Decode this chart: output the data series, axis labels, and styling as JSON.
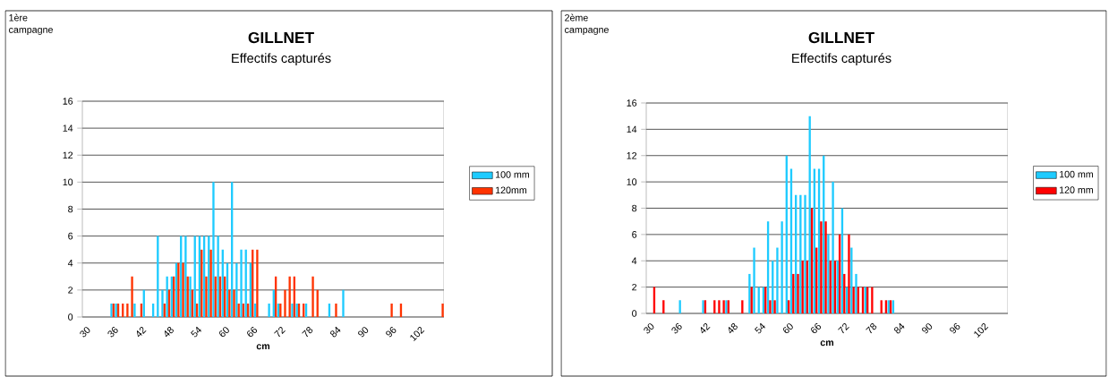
{
  "chart_data": [
    {
      "type": "bar",
      "title": "GILLNET",
      "subtitle": "Effectifs capturés",
      "xlabel": "cm",
      "annotations": [
        "1ère campagne"
      ],
      "categories": [
        "30",
        null,
        null,
        null,
        null,
        null,
        "36",
        null,
        null,
        null,
        null,
        null,
        "42",
        null,
        null,
        null,
        null,
        null,
        "48",
        null,
        null,
        null,
        null,
        null,
        "54",
        null,
        null,
        null,
        null,
        null,
        "60",
        null,
        null,
        null,
        null,
        null,
        "66",
        null,
        null,
        null,
        null,
        null,
        "72",
        null,
        null,
        null,
        null,
        null,
        "78",
        null,
        null,
        null,
        null,
        null,
        "84",
        null,
        null,
        null,
        null,
        null,
        "90",
        null,
        null,
        null,
        null,
        null,
        "96",
        null,
        null,
        null,
        null,
        null,
        "102",
        null,
        null,
        null,
        null,
        null
      ],
      "series": [
        {
          "name": "100 mm",
          "color": "#1ecbff",
          "values": [
            0,
            0,
            0,
            0,
            0,
            0,
            1,
            1,
            0,
            0,
            0,
            1,
            0,
            2,
            0,
            1,
            6,
            2,
            3,
            3,
            4,
            6,
            6,
            3,
            6,
            6,
            6,
            6,
            10,
            6,
            5,
            4,
            10,
            4,
            5,
            5,
            4,
            1,
            0,
            0,
            1,
            2,
            1,
            0,
            0,
            1,
            1,
            0,
            1,
            0,
            0,
            0,
            0,
            1,
            0,
            0,
            2,
            0,
            0,
            0,
            0,
            0,
            0,
            0,
            0,
            0,
            0,
            0,
            0,
            0,
            0,
            0,
            0,
            0,
            0,
            0,
            0,
            0
          ]
        },
        {
          "name": "120mm",
          "color": "#ff3300",
          "values": [
            0,
            0,
            0,
            0,
            0,
            0,
            1,
            1,
            1,
            1,
            3,
            0,
            1,
            0,
            0,
            0,
            0,
            1,
            2,
            3,
            4,
            4,
            3,
            2,
            1,
            5,
            3,
            5,
            3,
            3,
            3,
            2,
            2,
            1,
            1,
            1,
            5,
            5,
            0,
            0,
            0,
            3,
            1,
            2,
            3,
            3,
            1,
            1,
            0,
            3,
            2,
            0,
            0,
            0,
            1,
            0,
            0,
            0,
            0,
            0,
            0,
            0,
            0,
            0,
            0,
            0,
            1,
            0,
            1,
            0,
            0,
            0,
            0,
            0,
            0,
            0,
            0,
            1
          ]
        }
      ],
      "ylim": [
        0,
        16
      ],
      "yticks": [
        0,
        2,
        4,
        6,
        8,
        10,
        12,
        14,
        16
      ],
      "grid": "y",
      "legend": "right"
    },
    {
      "type": "bar",
      "title": "GILLNET",
      "subtitle": "Effectifs capturés",
      "xlabel": "cm",
      "annotations": [
        "2ème campagne"
      ],
      "categories": [
        "30",
        null,
        null,
        null,
        null,
        null,
        "36",
        null,
        null,
        null,
        null,
        null,
        "42",
        null,
        null,
        null,
        null,
        null,
        "48",
        null,
        null,
        null,
        null,
        null,
        "54",
        null,
        null,
        null,
        null,
        null,
        "60",
        null,
        null,
        null,
        null,
        null,
        "66",
        null,
        null,
        null,
        null,
        null,
        "72",
        null,
        null,
        null,
        null,
        null,
        "78",
        null,
        null,
        null,
        null,
        null,
        "84",
        null,
        null,
        null,
        null,
        null,
        "90",
        null,
        null,
        null,
        null,
        null,
        "96",
        null,
        null,
        null,
        null,
        null,
        "102",
        null,
        null,
        null,
        null,
        null
      ],
      "series": [
        {
          "name": "100 mm",
          "color": "#1ecbff",
          "values": [
            0,
            0,
            0,
            0,
            0,
            0,
            0,
            1,
            0,
            0,
            0,
            0,
            1,
            0,
            0,
            0,
            0,
            1,
            0,
            0,
            0,
            0,
            3,
            5,
            2,
            2,
            7,
            4,
            5,
            7,
            12,
            11,
            9,
            9,
            9,
            15,
            11,
            11,
            12,
            6,
            10,
            4,
            8,
            2,
            5,
            3,
            0,
            2,
            0,
            0,
            0,
            0,
            1,
            1,
            0,
            0,
            0,
            0,
            0,
            0,
            0,
            0,
            0,
            0,
            0,
            0,
            0,
            0,
            0,
            0,
            0,
            0,
            0,
            0,
            0,
            0,
            0,
            0
          ]
        },
        {
          "name": "120 mm",
          "color": "#ff0000",
          "values": [
            0,
            2,
            0,
            1,
            0,
            0,
            0,
            0,
            0,
            0,
            0,
            0,
            1,
            0,
            1,
            1,
            1,
            1,
            0,
            0,
            1,
            0,
            2,
            0,
            0,
            2,
            1,
            1,
            0,
            0,
            1,
            3,
            3,
            4,
            4,
            8,
            5,
            7,
            7,
            4,
            4,
            6,
            3,
            6,
            2,
            2,
            2,
            2,
            2,
            0,
            1,
            1,
            1,
            0,
            0,
            0,
            0,
            0,
            0,
            0,
            0,
            0,
            0,
            0,
            0,
            0,
            0,
            0,
            0,
            0,
            0,
            0,
            0,
            0,
            0,
            0,
            0,
            0
          ]
        }
      ],
      "ylim": [
        0,
        16
      ],
      "yticks": [
        0,
        2,
        4,
        6,
        8,
        10,
        12,
        14,
        16
      ],
      "grid": "y",
      "legend": "right"
    }
  ]
}
